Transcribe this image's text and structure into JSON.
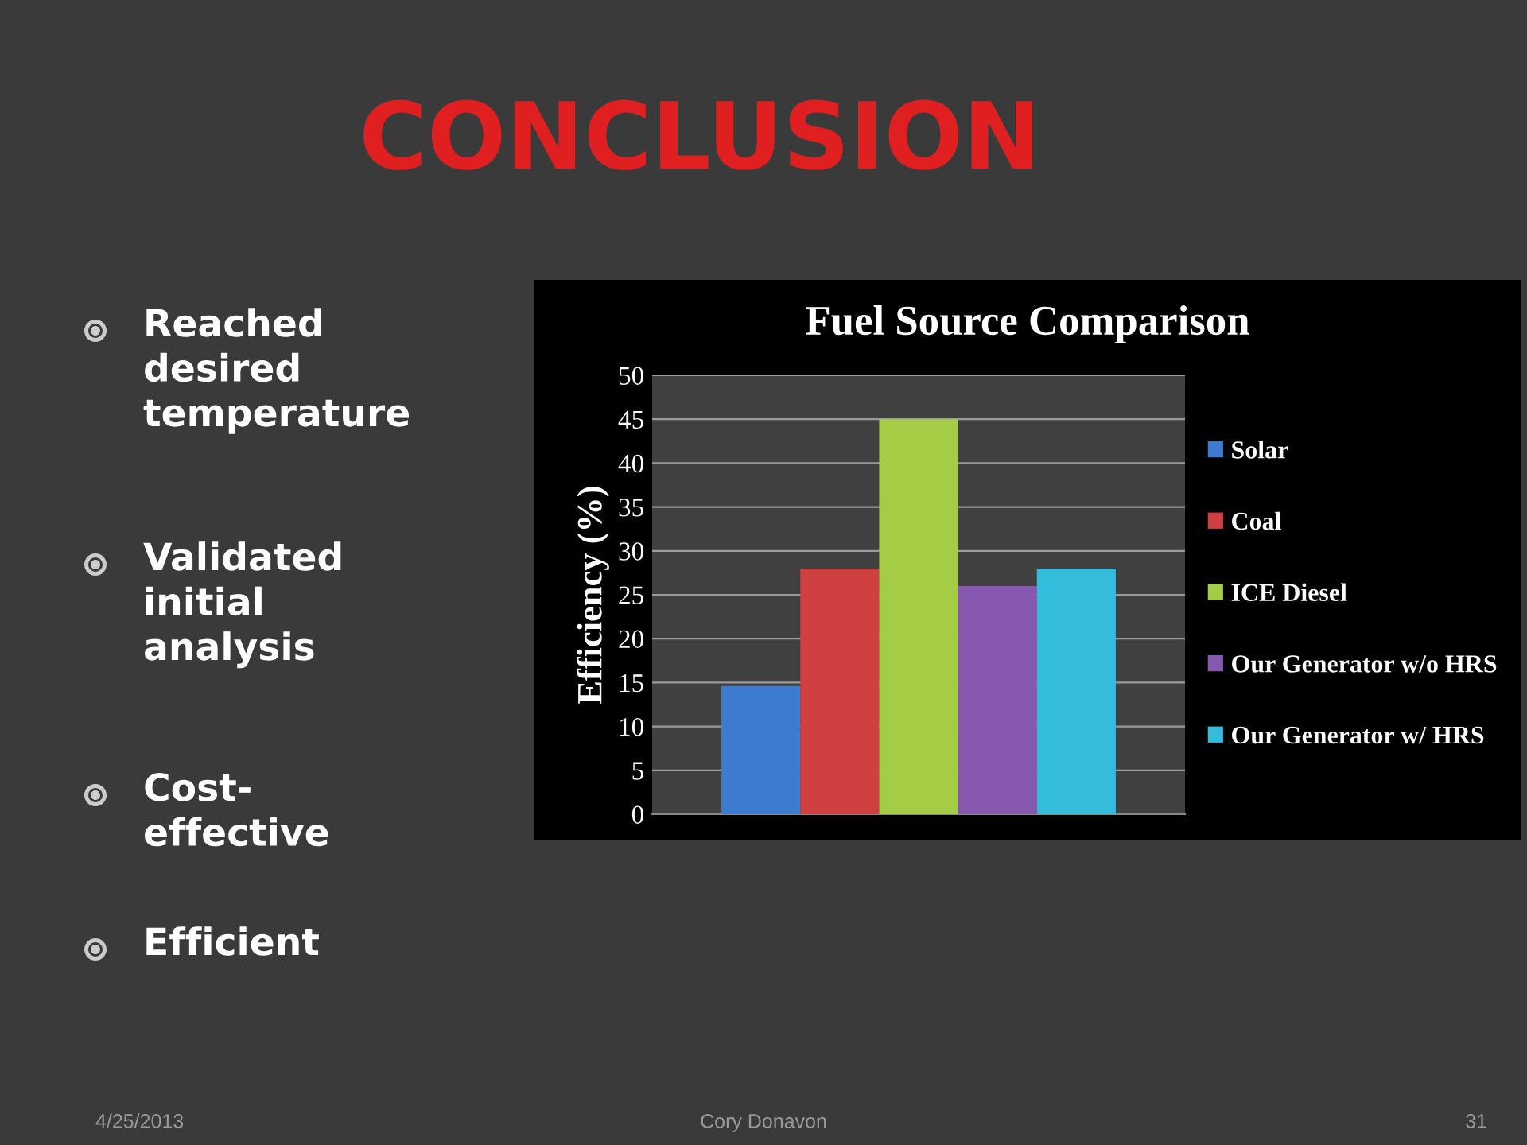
{
  "chart_data": {
    "type": "bar",
    "title": "Fuel Source Comparison",
    "ylabel": "Efficiency (%)",
    "categories": [
      null
    ],
    "series": [
      {
        "name": "Solar",
        "color": "#3c7bd0",
        "values": [
          14.6
        ]
      },
      {
        "name": "Coal",
        "color": "#d04040",
        "values": [
          28
        ]
      },
      {
        "name": "ICE Diesel",
        "color": "#a4cc44",
        "values": [
          45
        ]
      },
      {
        "name": "Our Generator w/o HRS",
        "color": "#8658b0",
        "values": [
          26
        ]
      },
      {
        "name": "Our Generator w/ HRS",
        "color": "#34bcdc",
        "values": [
          28
        ]
      }
    ],
    "ylim": [
      0,
      50
    ],
    "yticks": [
      0,
      5,
      10,
      15,
      20,
      25,
      30,
      35,
      40,
      45,
      50
    ],
    "grid": "y",
    "legend": "right",
    "annotations": [
      "CONCLUSION",
      "Reached\ndesired\ntemperature",
      "Validated\ninitial\nanalysis",
      "Cost-\neffective",
      "Efficient",
      "4/25/2013",
      "Cory Donavon",
      "31"
    ]
  }
}
